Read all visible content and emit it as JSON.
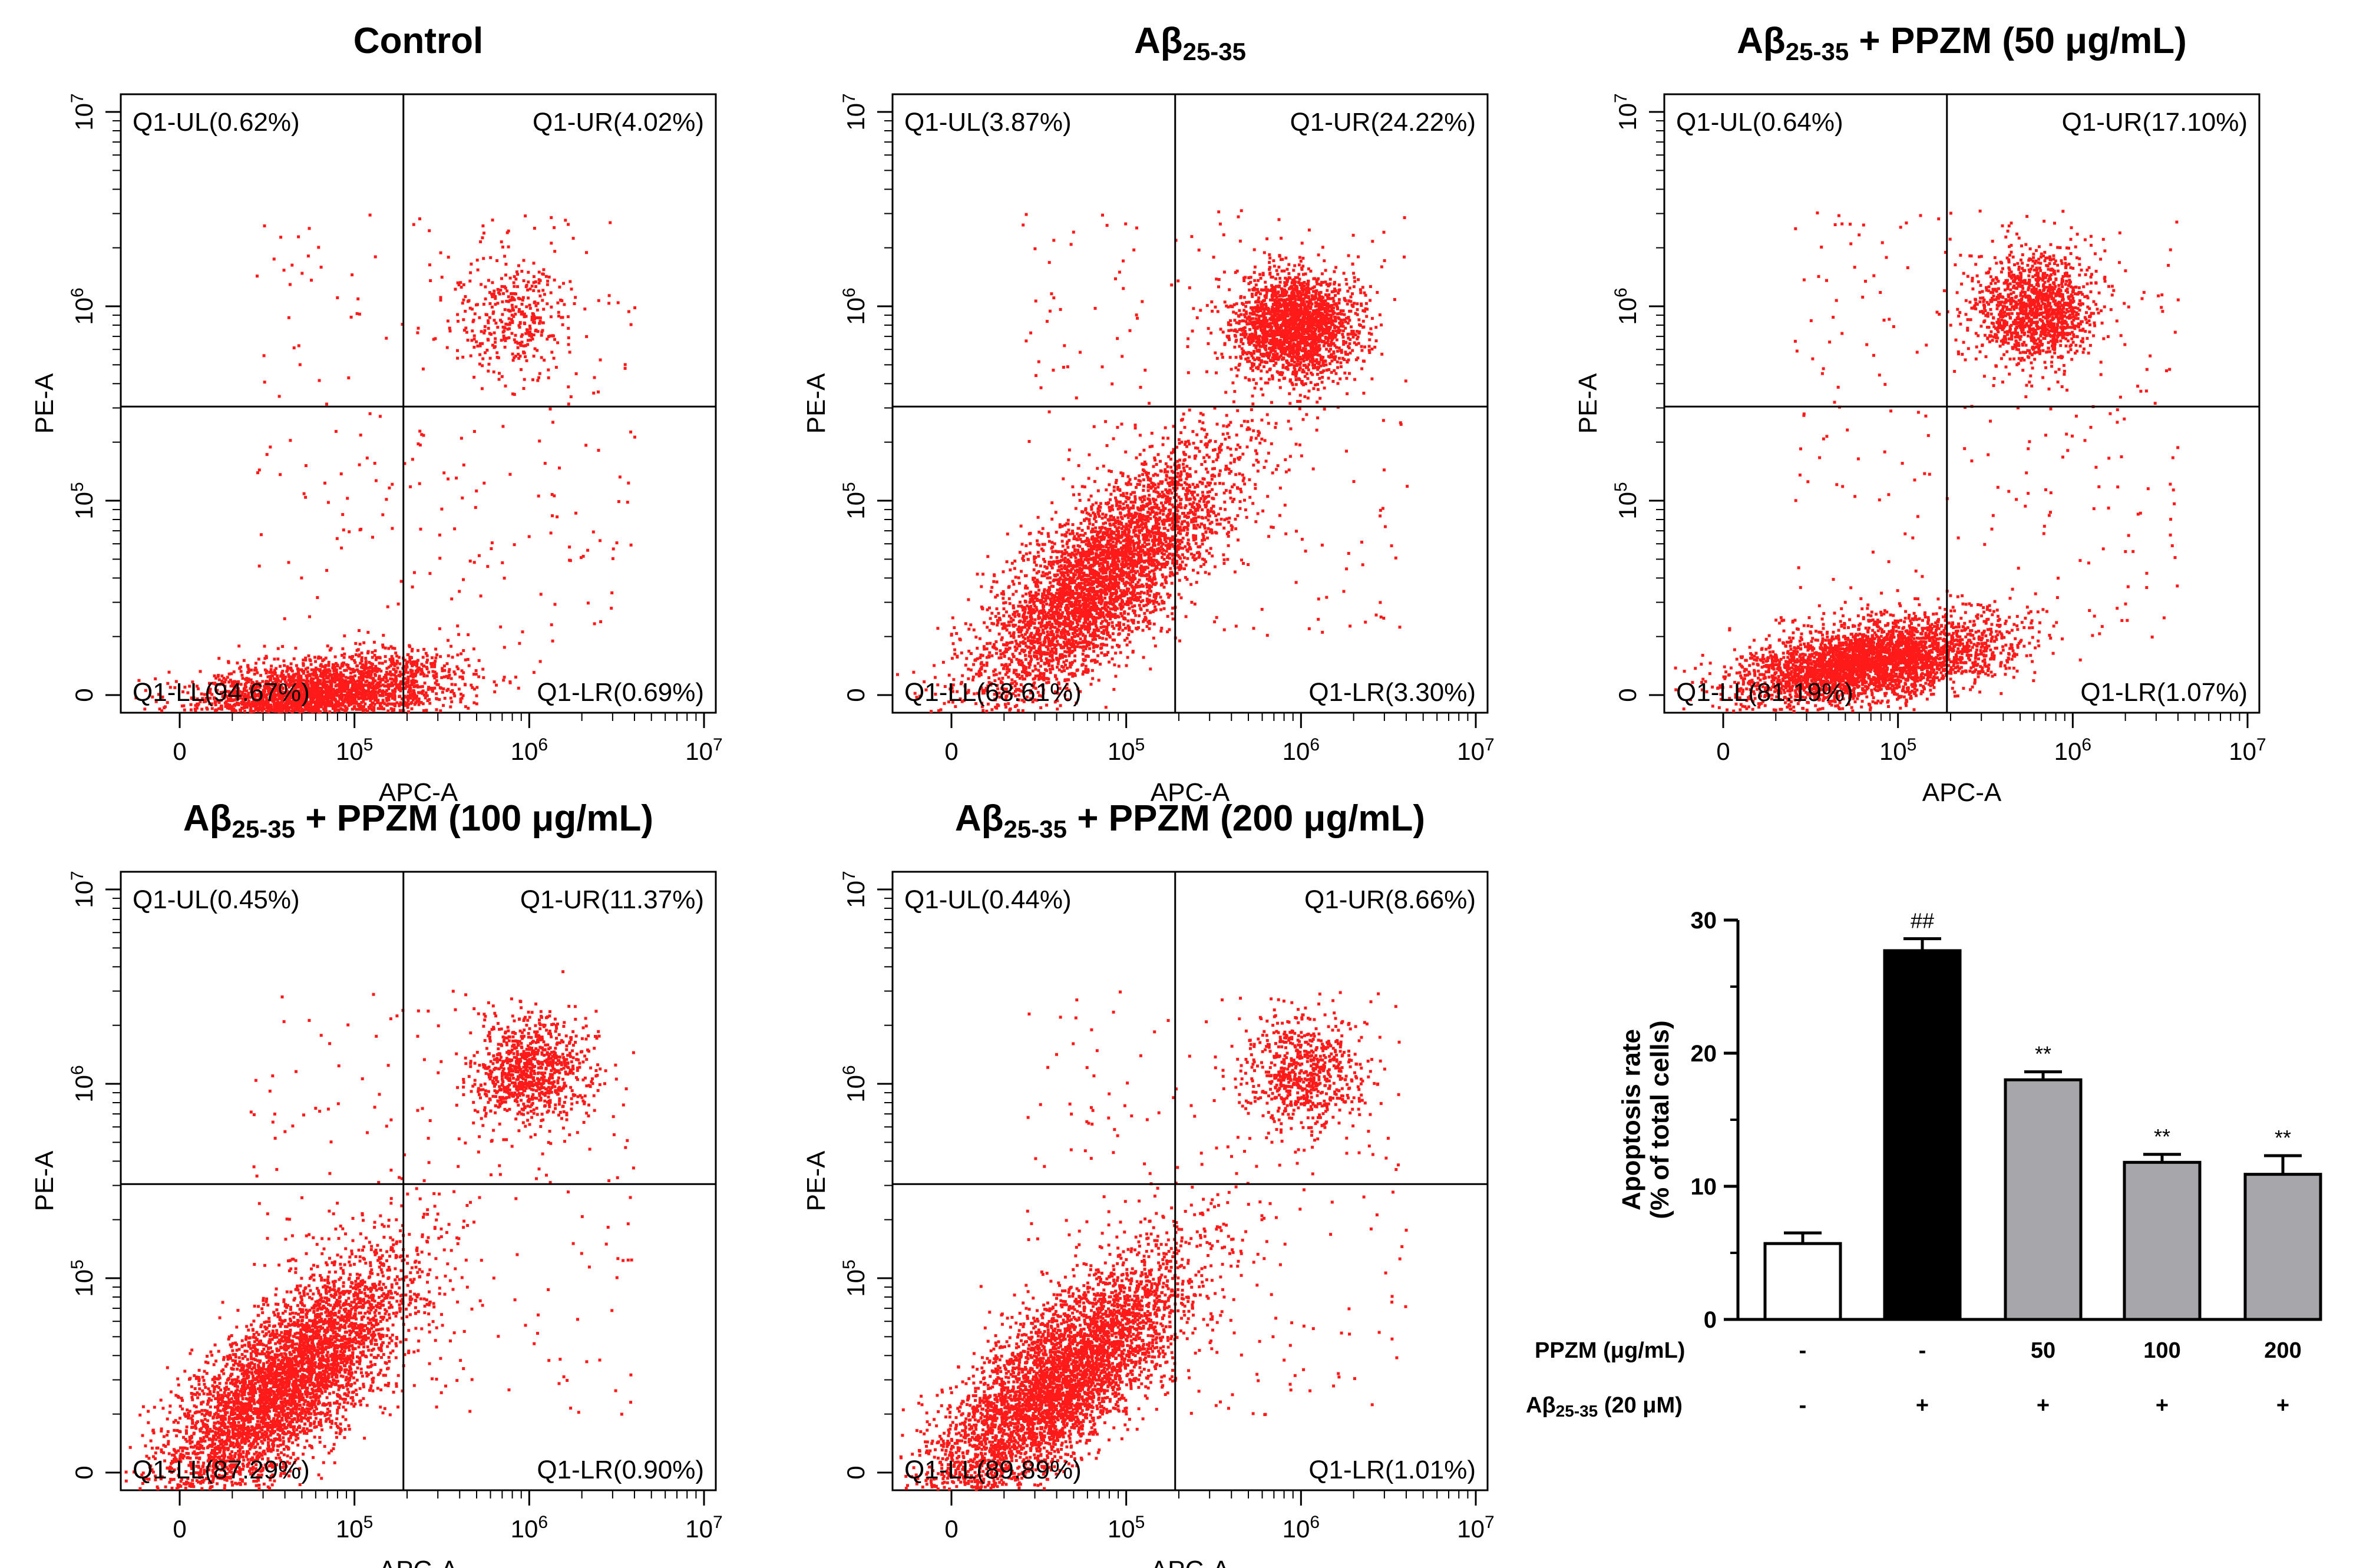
{
  "flow_panels": [
    {
      "title_main": "Control",
      "title_sub": "",
      "title_rest": "",
      "q_ul": "Q1-UL(0.62%)",
      "q_ur": "Q1-UR(4.02%)",
      "q_ll": "Q1-LL(94.67%)",
      "q_lr": "Q1-LR(0.69%)"
    },
    {
      "title_main": "Aβ",
      "title_sub": "25-35",
      "title_rest": "",
      "q_ul": "Q1-UL(3.87%)",
      "q_ur": "Q1-UR(24.22%)",
      "q_ll": "Q1-LL(68.61%)",
      "q_lr": "Q1-LR(3.30%)"
    },
    {
      "title_main": "Aβ",
      "title_sub": "25-35",
      "title_rest": " + PPZM (50 μg/mL)",
      "q_ul": "Q1-UL(0.64%)",
      "q_ur": "Q1-UR(17.10%)",
      "q_ll": "Q1-LL(81.19%)",
      "q_lr": "Q1-LR(1.07%)"
    },
    {
      "title_main": "Aβ",
      "title_sub": "25-35",
      "title_rest": " + PPZM (100 μg/mL)",
      "q_ul": "Q1-UL(0.45%)",
      "q_ur": "Q1-UR(11.37%)",
      "q_ll": "Q1-LL(87.29%)",
      "q_lr": "Q1-LR(0.90%)"
    },
    {
      "title_main": "Aβ",
      "title_sub": "25-35",
      "title_rest": " + PPZM (200 μg/mL)",
      "q_ul": "Q1-UL(0.44%)",
      "q_ur": "Q1-UR(8.66%)",
      "q_ll": "Q1-LL(89.89%)",
      "q_lr": "Q1-LR(1.01%)"
    }
  ],
  "flow_axes": {
    "xlabel": "APC-A",
    "ylabel": "PE-A",
    "tick_zero": "0",
    "tick_base": "10",
    "tick_exps": [
      "5",
      "6",
      "7"
    ]
  },
  "chart_data": [
    {
      "type": "scatter",
      "title": "Control",
      "xlabel": "APC-A",
      "ylabel": "PE-A",
      "scale": "log",
      "quadrants": {
        "UL": 0.62,
        "UR": 4.02,
        "LL": 94.67,
        "LR": 0.69
      },
      "populations": [
        {
          "quadrant": "LL",
          "apc_center": 60000,
          "pe_center": 10000,
          "n": 3000,
          "shape": "flat"
        },
        {
          "quadrant": "UR",
          "apc_center": 800000,
          "pe_center": 900000,
          "n": 350,
          "shape": "cluster"
        }
      ]
    },
    {
      "type": "scatter",
      "title": "Aβ25-35",
      "xlabel": "APC-A",
      "ylabel": "PE-A",
      "scale": "log",
      "quadrants": {
        "UL": 3.87,
        "UR": 24.22,
        "LL": 68.61,
        "LR": 3.3
      },
      "populations": [
        {
          "quadrant": "LL",
          "apc_center": 70000,
          "pe_center": 40000,
          "n": 4200,
          "shape": "diagonal"
        },
        {
          "quadrant": "UR",
          "apc_center": 900000,
          "pe_center": 800000,
          "n": 2100,
          "shape": "cluster"
        }
      ]
    },
    {
      "type": "scatter",
      "title": "Aβ25-35 + PPZM (50 μg/mL)",
      "xlabel": "APC-A",
      "ylabel": "PE-A",
      "scale": "log",
      "quadrants": {
        "UL": 0.64,
        "UR": 17.1,
        "LL": 81.19,
        "LR": 1.07
      },
      "populations": [
        {
          "quadrant": "LL",
          "apc_center": 70000,
          "pe_center": 15000,
          "n": 3400,
          "shape": "flat"
        },
        {
          "quadrant": "UR",
          "apc_center": 600000,
          "pe_center": 1000000,
          "n": 1300,
          "shape": "cluster"
        }
      ]
    },
    {
      "type": "scatter",
      "title": "Aβ25-35 + PPZM (100 μg/mL)",
      "xlabel": "APC-A",
      "ylabel": "PE-A",
      "scale": "log",
      "quadrants": {
        "UL": 0.45,
        "UR": 11.37,
        "LL": 87.29,
        "LR": 0.9
      },
      "populations": [
        {
          "quadrant": "LL",
          "apc_center": 40000,
          "pe_center": 30000,
          "n": 4500,
          "shape": "diagonal"
        },
        {
          "quadrant": "UR",
          "apc_center": 1000000,
          "pe_center": 1200000,
          "n": 900,
          "shape": "cluster"
        }
      ]
    },
    {
      "type": "scatter",
      "title": "Aβ25-35 + PPZM (200 μg/mL)",
      "xlabel": "APC-A",
      "ylabel": "PE-A",
      "scale": "log",
      "quadrants": {
        "UL": 0.44,
        "UR": 8.66,
        "LL": 89.89,
        "LR": 1.01
      },
      "populations": [
        {
          "quadrant": "LL",
          "apc_center": 40000,
          "pe_center": 30000,
          "n": 4500,
          "shape": "diagonal"
        },
        {
          "quadrant": "UR",
          "apc_center": 1000000,
          "pe_center": 1100000,
          "n": 700,
          "shape": "cluster"
        }
      ]
    },
    {
      "type": "bar",
      "ylabel_line1": "Apoptosis rate",
      "ylabel_line2": "(% of total cells)",
      "ylim": [
        0,
        30
      ],
      "yticks": [
        "0",
        "10",
        "20",
        "30"
      ],
      "categories": [
        "Control",
        "Aβ25-35",
        "PPZM 50",
        "PPZM 100",
        "PPZM 200"
      ],
      "values": [
        5.7,
        27.7,
        18.0,
        11.8,
        10.9
      ],
      "errors": [
        0.8,
        0.9,
        0.6,
        0.6,
        1.4
      ],
      "colors": [
        "#ffffff",
        "#000000",
        "#a6a6ab",
        "#a6a6ab",
        "#a6a6ab"
      ],
      "significance": [
        "",
        "##",
        "**",
        "**",
        "**"
      ],
      "rows": [
        {
          "label": "PPZM (μg/mL)",
          "values": [
            "-",
            "-",
            "50",
            "100",
            "200"
          ]
        },
        {
          "label_main": "Aβ",
          "label_sub": "25-35",
          "label_rest": " (20 μM)",
          "values": [
            "-",
            "+",
            "+",
            "+",
            "+"
          ]
        }
      ]
    }
  ],
  "colors": {
    "dots": "#ff1a1a",
    "axis": "#000000"
  }
}
